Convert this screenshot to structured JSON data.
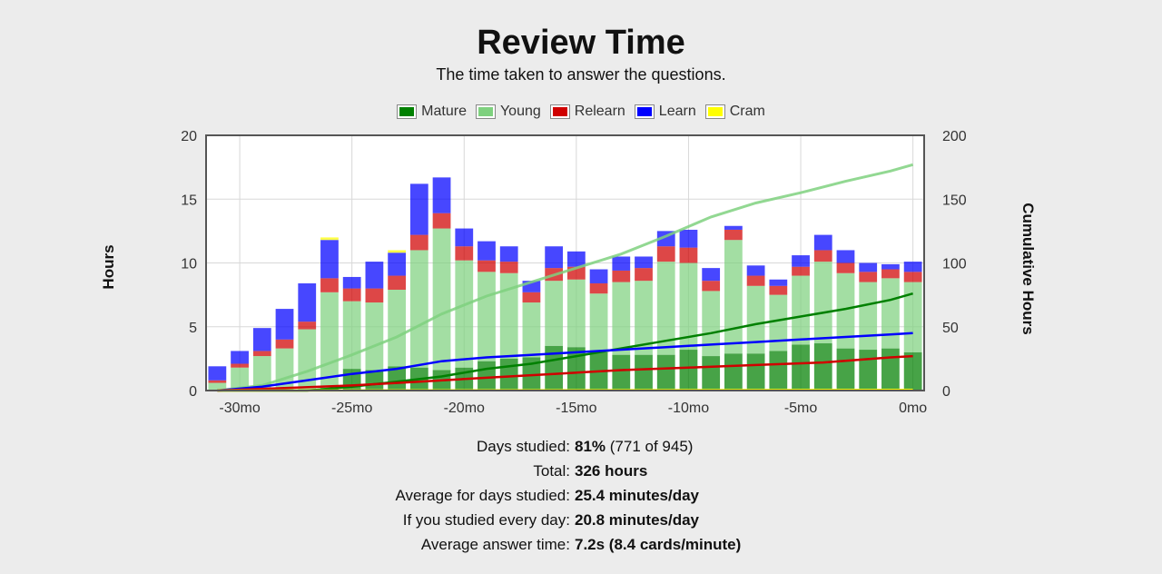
{
  "header": {
    "title": "Review Time",
    "subtitle": "The time taken to answer the questions."
  },
  "legend": [
    {
      "label": "Mature",
      "color": "#008000"
    },
    {
      "label": "Young",
      "color": "#7fd17f"
    },
    {
      "label": "Relearn",
      "color": "#d00000"
    },
    {
      "label": "Learn",
      "color": "#0000ff"
    },
    {
      "label": "Cram",
      "color": "#ffff00"
    }
  ],
  "axes": {
    "ylabel_left": "Hours",
    "ylabel_right": "Cumulative Hours",
    "x_ticks": [
      {
        "value": -30,
        "label": "-30mo"
      },
      {
        "value": -25,
        "label": "-25mo"
      },
      {
        "value": -20,
        "label": "-20mo"
      },
      {
        "value": -15,
        "label": "-15mo"
      },
      {
        "value": -10,
        "label": "-10mo"
      },
      {
        "value": -5,
        "label": "-5mo"
      },
      {
        "value": 0,
        "label": "0mo"
      }
    ],
    "y_left_ticks": [
      "0",
      "5",
      "10",
      "15",
      "20"
    ],
    "y_right_ticks": [
      "0",
      "50",
      "100",
      "150",
      "200"
    ]
  },
  "chart_data": {
    "type": "bar",
    "stacked": true,
    "x": [
      -31,
      -30,
      -29,
      -28,
      -27,
      -26,
      -25,
      -24,
      -23,
      -22,
      -21,
      -20,
      -19,
      -18,
      -17,
      -16,
      -15,
      -14,
      -13,
      -12,
      -11,
      -10,
      -9,
      -8,
      -7,
      -6,
      -5,
      -4,
      -3,
      -2,
      -1,
      0
    ],
    "xlim": [
      -31.5,
      0.5
    ],
    "ylim_left": [
      0,
      20
    ],
    "ylim_right": [
      0,
      200
    ],
    "grid": true,
    "legend_position": "top-center",
    "series": [
      {
        "name": "Mature",
        "color": "#008000",
        "values": [
          0,
          0,
          0,
          0,
          0,
          0.2,
          1.7,
          1.6,
          1.9,
          1.8,
          1.6,
          1.8,
          2.3,
          2.5,
          2.6,
          3.5,
          3.4,
          3.0,
          2.8,
          2.8,
          2.8,
          3.2,
          2.7,
          2.9,
          2.9,
          3.1,
          3.6,
          3.7,
          3.3,
          3.2,
          3.3,
          3.0
        ]
      },
      {
        "name": "Young",
        "color": "#7fd17f",
        "values": [
          0.6,
          1.8,
          2.7,
          3.3,
          4.8,
          7.5,
          5.3,
          5.3,
          6.0,
          9.2,
          11.1,
          8.4,
          7.0,
          6.7,
          4.3,
          5.1,
          5.3,
          4.6,
          5.7,
          5.8,
          7.3,
          6.8,
          5.1,
          8.9,
          5.3,
          4.4,
          5.4,
          6.4,
          5.9,
          5.3,
          5.5,
          5.5
        ]
      },
      {
        "name": "Relearn",
        "color": "#d00000",
        "values": [
          0.2,
          0.3,
          0.4,
          0.7,
          0.6,
          1.1,
          1.0,
          1.1,
          1.1,
          1.2,
          1.2,
          1.1,
          0.9,
          0.9,
          0.8,
          1.0,
          1.0,
          0.8,
          0.9,
          1.0,
          1.2,
          1.2,
          0.8,
          0.8,
          0.8,
          0.7,
          0.7,
          0.9,
          0.8,
          0.8,
          0.7,
          0.8
        ]
      },
      {
        "name": "Learn",
        "color": "#0000ff",
        "values": [
          1.1,
          1.0,
          1.8,
          2.4,
          3.0,
          3.0,
          0.9,
          2.1,
          1.8,
          4.0,
          2.8,
          1.4,
          1.5,
          1.2,
          0.9,
          1.7,
          1.2,
          1.1,
          1.1,
          0.9,
          1.2,
          1.4,
          1.0,
          0.3,
          0.8,
          0.5,
          0.9,
          1.2,
          1.0,
          0.7,
          0.4,
          0.8
        ]
      },
      {
        "name": "Cram",
        "color": "#ffff00",
        "values": [
          0,
          0,
          0,
          0,
          0,
          0.2,
          0,
          0,
          0.2,
          0,
          0,
          0,
          0,
          0,
          0,
          0,
          0,
          0,
          0,
          0,
          0,
          0,
          0,
          0,
          0,
          0,
          0,
          0,
          0,
          0,
          0,
          0
        ]
      }
    ],
    "cumulative": [
      {
        "name": "Young",
        "color": "#7fd17f",
        "x": [
          -31,
          -29,
          -27,
          -25,
          -23,
          -21,
          -19,
          -17,
          -15,
          -13,
          -11,
          -9,
          -7,
          -5,
          -3,
          -1,
          0
        ],
        "values": [
          0,
          4,
          15,
          28,
          42,
          60,
          74,
          85,
          96,
          107,
          121,
          136,
          147,
          155,
          164,
          172,
          177
        ]
      },
      {
        "name": "Mature",
        "color": "#008000",
        "x": [
          -31,
          -27,
          -25,
          -23,
          -21,
          -19,
          -17,
          -15,
          -13,
          -11,
          -9,
          -7,
          -5,
          -3,
          -1,
          0
        ],
        "values": [
          0,
          0,
          3,
          7,
          11,
          17,
          21,
          27,
          33,
          39,
          45,
          52,
          58,
          64,
          71,
          76
        ]
      },
      {
        "name": "Learn",
        "color": "#0000ff",
        "x": [
          -31,
          -29,
          -27,
          -25,
          -23,
          -21,
          -19,
          -17,
          -15,
          -13,
          -11,
          -9,
          -7,
          -5,
          -3,
          -1,
          0
        ],
        "values": [
          0,
          3,
          8,
          13,
          17,
          23,
          26,
          28,
          30,
          32,
          34,
          36,
          38,
          40,
          42,
          44,
          45
        ]
      },
      {
        "name": "Relearn",
        "color": "#d00000",
        "x": [
          -31,
          -28,
          -25,
          -22,
          -19,
          -16,
          -13,
          -10,
          -7,
          -4,
          -1,
          0
        ],
        "values": [
          0,
          2,
          4,
          7,
          10,
          13,
          16,
          18,
          20,
          22,
          26,
          27
        ]
      },
      {
        "name": "Cram",
        "color": "#ffff00",
        "x": [
          -31,
          0
        ],
        "values": [
          0,
          0.5
        ]
      }
    ]
  },
  "stats": [
    {
      "label": "Days studied:",
      "bold": "81%",
      "rest": " (771 of 945)"
    },
    {
      "label": "Total:",
      "bold": "326 hours",
      "rest": ""
    },
    {
      "label": "Average for days studied:",
      "bold": "25.4 minutes/day",
      "rest": ""
    },
    {
      "label": "If you studied every day:",
      "bold": "20.8 minutes/day",
      "rest": ""
    },
    {
      "label": "Average answer time:",
      "bold": "7.2s (8.4 cards/minute)",
      "rest": ""
    }
  ]
}
